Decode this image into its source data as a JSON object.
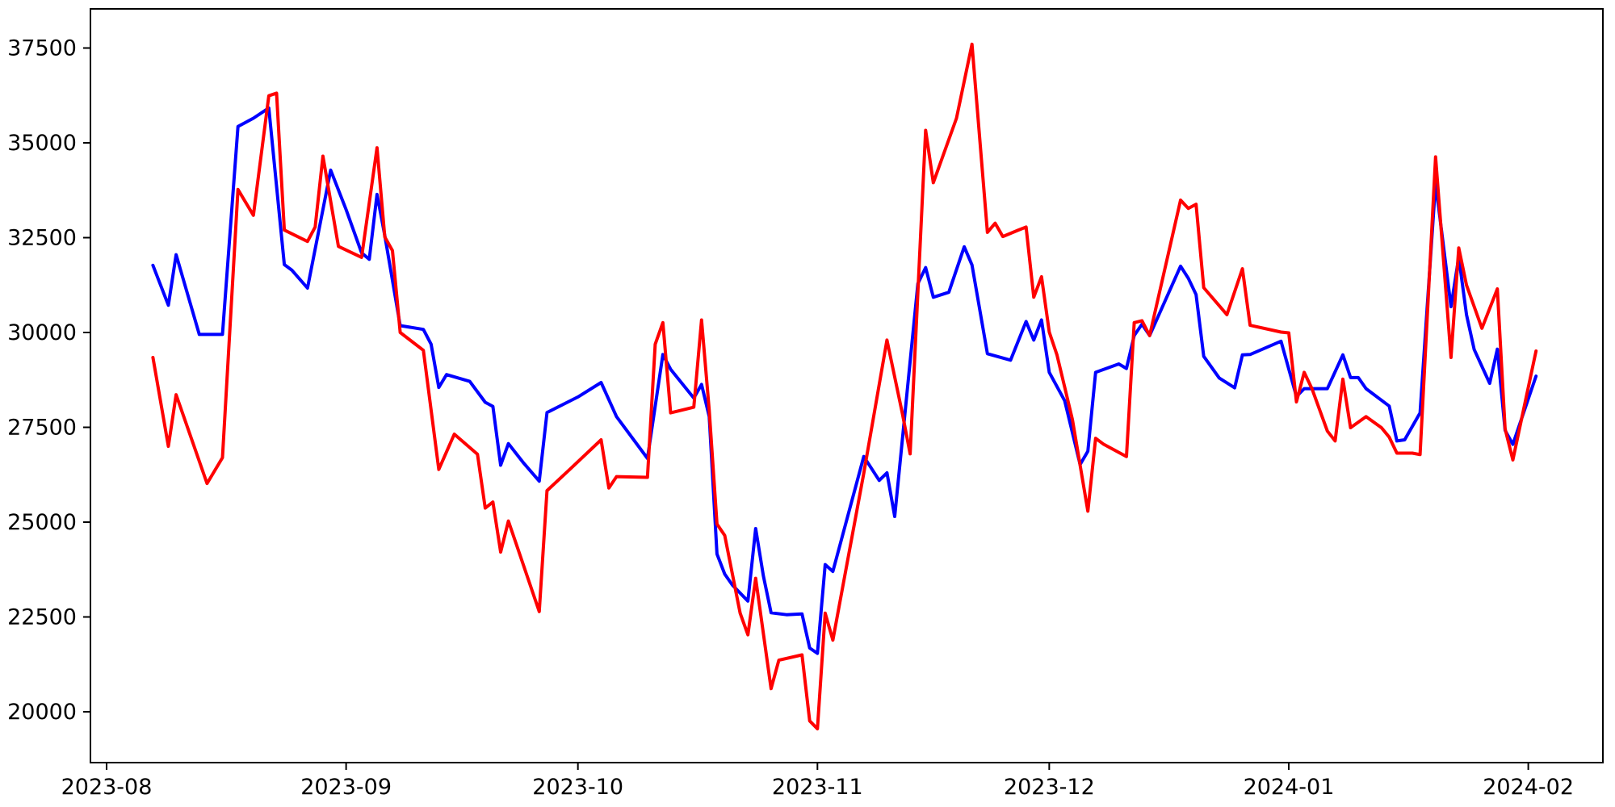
{
  "chart_data": {
    "type": "line",
    "title": "",
    "xlabel": "",
    "ylabel": "",
    "grid": false,
    "legend": "none",
    "background": "#ffffff",
    "axis_color": "#000000",
    "x_ticks": [
      {
        "label": "2023-08",
        "date": "2023-08-01"
      },
      {
        "label": "2023-09",
        "date": "2023-09-01"
      },
      {
        "label": "2023-10",
        "date": "2023-10-01"
      },
      {
        "label": "2023-11",
        "date": "2023-11-01"
      },
      {
        "label": "2023-12",
        "date": "2023-12-01"
      },
      {
        "label": "2024-01",
        "date": "2024-01-01"
      },
      {
        "label": "2024-02",
        "date": "2024-02-01"
      }
    ],
    "y_ticks": [
      20000,
      22500,
      25000,
      27500,
      30000,
      32500,
      35000,
      37500
    ],
    "ylim": [
      18660,
      38530
    ],
    "xlim_dates": [
      "2023-07-30",
      "2024-02-11"
    ],
    "series": [
      {
        "name": "blue-series",
        "color": "#0000ff",
        "points": [
          [
            "2023-08-07",
            31770
          ],
          [
            "2023-08-09",
            30720
          ],
          [
            "2023-08-10",
            32050
          ],
          [
            "2023-08-13",
            29950
          ],
          [
            "2023-08-16",
            29950
          ],
          [
            "2023-08-18",
            35430
          ],
          [
            "2023-08-20",
            35650
          ],
          [
            "2023-08-22",
            35920
          ],
          [
            "2023-08-24",
            31790
          ],
          [
            "2023-08-25",
            31640
          ],
          [
            "2023-08-27",
            31170
          ],
          [
            "2023-08-30",
            34280
          ],
          [
            "2023-09-01",
            33240
          ],
          [
            "2023-09-03",
            32100
          ],
          [
            "2023-09-04",
            31930
          ],
          [
            "2023-09-05",
            33640
          ],
          [
            "2023-09-06",
            32560
          ],
          [
            "2023-09-08",
            30180
          ],
          [
            "2023-09-11",
            30080
          ],
          [
            "2023-09-12",
            29690
          ],
          [
            "2023-09-13",
            28550
          ],
          [
            "2023-09-14",
            28890
          ],
          [
            "2023-09-17",
            28710
          ],
          [
            "2023-09-19",
            28160
          ],
          [
            "2023-09-20",
            28050
          ],
          [
            "2023-09-21",
            26500
          ],
          [
            "2023-09-22",
            27070
          ],
          [
            "2023-09-24",
            26550
          ],
          [
            "2023-09-26",
            26080
          ],
          [
            "2023-09-27",
            27890
          ],
          [
            "2023-10-01",
            28300
          ],
          [
            "2023-10-04",
            28680
          ],
          [
            "2023-10-06",
            27780
          ],
          [
            "2023-10-10",
            26680
          ],
          [
            "2023-10-12",
            29420
          ],
          [
            "2023-10-13",
            29030
          ],
          [
            "2023-10-16",
            28270
          ],
          [
            "2023-10-17",
            28630
          ],
          [
            "2023-10-18",
            27780
          ],
          [
            "2023-10-19",
            24160
          ],
          [
            "2023-10-20",
            23630
          ],
          [
            "2023-10-21",
            23340
          ],
          [
            "2023-10-23",
            22920
          ],
          [
            "2023-10-24",
            24830
          ],
          [
            "2023-10-25",
            23590
          ],
          [
            "2023-10-26",
            22610
          ],
          [
            "2023-10-28",
            22560
          ],
          [
            "2023-10-30",
            22580
          ],
          [
            "2023-10-31",
            21680
          ],
          [
            "2023-11-01",
            21540
          ],
          [
            "2023-11-02",
            23880
          ],
          [
            "2023-11-03",
            23700
          ],
          [
            "2023-11-07",
            26730
          ],
          [
            "2023-11-09",
            26100
          ],
          [
            "2023-11-10",
            26300
          ],
          [
            "2023-11-11",
            25150
          ],
          [
            "2023-11-14",
            31290
          ],
          [
            "2023-11-15",
            31710
          ],
          [
            "2023-11-16",
            30930
          ],
          [
            "2023-11-18",
            31060
          ],
          [
            "2023-11-20",
            32260
          ],
          [
            "2023-11-21",
            31780
          ],
          [
            "2023-11-23",
            29440
          ],
          [
            "2023-11-26",
            29270
          ],
          [
            "2023-11-28",
            30290
          ],
          [
            "2023-11-29",
            29800
          ],
          [
            "2023-11-30",
            30330
          ],
          [
            "2023-12-01",
            28950
          ],
          [
            "2023-12-03",
            28200
          ],
          [
            "2023-12-05",
            26520
          ],
          [
            "2023-12-06",
            26870
          ],
          [
            "2023-12-07",
            28950
          ],
          [
            "2023-12-10",
            29170
          ],
          [
            "2023-12-11",
            29050
          ],
          [
            "2023-12-12",
            29920
          ],
          [
            "2023-12-13",
            30220
          ],
          [
            "2023-12-14",
            29920
          ],
          [
            "2023-12-18",
            31750
          ],
          [
            "2023-12-19",
            31430
          ],
          [
            "2023-12-20",
            31000
          ],
          [
            "2023-12-21",
            29370
          ],
          [
            "2023-12-23",
            28800
          ],
          [
            "2023-12-25",
            28540
          ],
          [
            "2023-12-26",
            29410
          ],
          [
            "2023-12-27",
            29420
          ],
          [
            "2023-12-31",
            29770
          ],
          [
            "2024-01-02",
            28310
          ],
          [
            "2024-01-03",
            28520
          ],
          [
            "2024-01-06",
            28520
          ],
          [
            "2024-01-08",
            29410
          ],
          [
            "2024-01-09",
            28810
          ],
          [
            "2024-01-10",
            28810
          ],
          [
            "2024-01-11",
            28520
          ],
          [
            "2024-01-14",
            28060
          ],
          [
            "2024-01-15",
            27140
          ],
          [
            "2024-01-16",
            27170
          ],
          [
            "2024-01-18",
            27880
          ],
          [
            "2024-01-20",
            33950
          ],
          [
            "2024-01-22",
            30680
          ],
          [
            "2024-01-23",
            31990
          ],
          [
            "2024-01-24",
            30470
          ],
          [
            "2024-01-25",
            29550
          ],
          [
            "2024-01-27",
            28660
          ],
          [
            "2024-01-28",
            29560
          ],
          [
            "2024-01-29",
            27420
          ],
          [
            "2024-01-30",
            27050
          ],
          [
            "2024-02-02",
            28850
          ]
        ]
      },
      {
        "name": "red-series",
        "color": "#ff0000",
        "points": [
          [
            "2023-08-07",
            29340
          ],
          [
            "2023-08-09",
            27000
          ],
          [
            "2023-08-10",
            28360
          ],
          [
            "2023-08-14",
            26020
          ],
          [
            "2023-08-16",
            26700
          ],
          [
            "2023-08-18",
            33770
          ],
          [
            "2023-08-20",
            33090
          ],
          [
            "2023-08-22",
            36240
          ],
          [
            "2023-08-23",
            36310
          ],
          [
            "2023-08-24",
            32700
          ],
          [
            "2023-08-27",
            32400
          ],
          [
            "2023-08-28",
            32780
          ],
          [
            "2023-08-29",
            34650
          ],
          [
            "2023-08-31",
            32270
          ],
          [
            "2023-09-03",
            31980
          ],
          [
            "2023-09-05",
            34870
          ],
          [
            "2023-09-06",
            32520
          ],
          [
            "2023-09-07",
            32160
          ],
          [
            "2023-09-08",
            30000
          ],
          [
            "2023-09-11",
            29530
          ],
          [
            "2023-09-13",
            26390
          ],
          [
            "2023-09-15",
            27320
          ],
          [
            "2023-09-18",
            26790
          ],
          [
            "2023-09-19",
            25370
          ],
          [
            "2023-09-20",
            25530
          ],
          [
            "2023-09-21",
            24210
          ],
          [
            "2023-09-22",
            25030
          ],
          [
            "2023-09-26",
            22640
          ],
          [
            "2023-09-27",
            25830
          ],
          [
            "2023-09-30",
            26400
          ],
          [
            "2023-10-04",
            27170
          ],
          [
            "2023-10-05",
            25900
          ],
          [
            "2023-10-06",
            26200
          ],
          [
            "2023-10-10",
            26180
          ],
          [
            "2023-10-11",
            29690
          ],
          [
            "2023-10-12",
            30260
          ],
          [
            "2023-10-13",
            27880
          ],
          [
            "2023-10-16",
            28030
          ],
          [
            "2023-10-17",
            30330
          ],
          [
            "2023-10-18",
            27950
          ],
          [
            "2023-10-19",
            24950
          ],
          [
            "2023-10-20",
            24650
          ],
          [
            "2023-10-22",
            22600
          ],
          [
            "2023-10-23",
            22030
          ],
          [
            "2023-10-24",
            23520
          ],
          [
            "2023-10-26",
            20610
          ],
          [
            "2023-10-27",
            21360
          ],
          [
            "2023-10-30",
            21500
          ],
          [
            "2023-10-31",
            19760
          ],
          [
            "2023-11-01",
            19550
          ],
          [
            "2023-11-02",
            22600
          ],
          [
            "2023-11-03",
            21890
          ],
          [
            "2023-11-07",
            26290
          ],
          [
            "2023-11-10",
            29800
          ],
          [
            "2023-11-12",
            27850
          ],
          [
            "2023-11-13",
            26800
          ],
          [
            "2023-11-15",
            35330
          ],
          [
            "2023-11-16",
            33950
          ],
          [
            "2023-11-19",
            35650
          ],
          [
            "2023-11-21",
            37600
          ],
          [
            "2023-11-23",
            32640
          ],
          [
            "2023-11-24",
            32880
          ],
          [
            "2023-11-25",
            32530
          ],
          [
            "2023-11-27",
            32700
          ],
          [
            "2023-11-28",
            32780
          ],
          [
            "2023-11-29",
            30930
          ],
          [
            "2023-11-30",
            31470
          ],
          [
            "2023-12-01",
            30010
          ],
          [
            "2023-12-02",
            29410
          ],
          [
            "2023-12-03",
            28560
          ],
          [
            "2023-12-04",
            27700
          ],
          [
            "2023-12-06",
            25290
          ],
          [
            "2023-12-07",
            27210
          ],
          [
            "2023-12-08",
            27060
          ],
          [
            "2023-12-11",
            26730
          ],
          [
            "2023-12-12",
            30260
          ],
          [
            "2023-12-13",
            30310
          ],
          [
            "2023-12-14",
            29920
          ],
          [
            "2023-12-18",
            33490
          ],
          [
            "2023-12-19",
            33270
          ],
          [
            "2023-12-20",
            33380
          ],
          [
            "2023-12-21",
            31180
          ],
          [
            "2023-12-24",
            30470
          ],
          [
            "2023-12-26",
            31680
          ],
          [
            "2023-12-27",
            30190
          ],
          [
            "2023-12-31",
            30010
          ],
          [
            "2024-01-01",
            29990
          ],
          [
            "2024-01-02",
            28170
          ],
          [
            "2024-01-03",
            28950
          ],
          [
            "2024-01-04",
            28520
          ],
          [
            "2024-01-06",
            27400
          ],
          [
            "2024-01-07",
            27140
          ],
          [
            "2024-01-08",
            28770
          ],
          [
            "2024-01-09",
            27490
          ],
          [
            "2024-01-11",
            27780
          ],
          [
            "2024-01-13",
            27490
          ],
          [
            "2024-01-14",
            27240
          ],
          [
            "2024-01-15",
            26820
          ],
          [
            "2024-01-17",
            26820
          ],
          [
            "2024-01-18",
            26780
          ],
          [
            "2024-01-20",
            34630
          ],
          [
            "2024-01-22",
            29340
          ],
          [
            "2024-01-23",
            32230
          ],
          [
            "2024-01-24",
            31250
          ],
          [
            "2024-01-26",
            30110
          ],
          [
            "2024-01-28",
            31150
          ],
          [
            "2024-01-29",
            27460
          ],
          [
            "2024-01-30",
            26640
          ],
          [
            "2024-02-02",
            29510
          ]
        ]
      }
    ]
  }
}
